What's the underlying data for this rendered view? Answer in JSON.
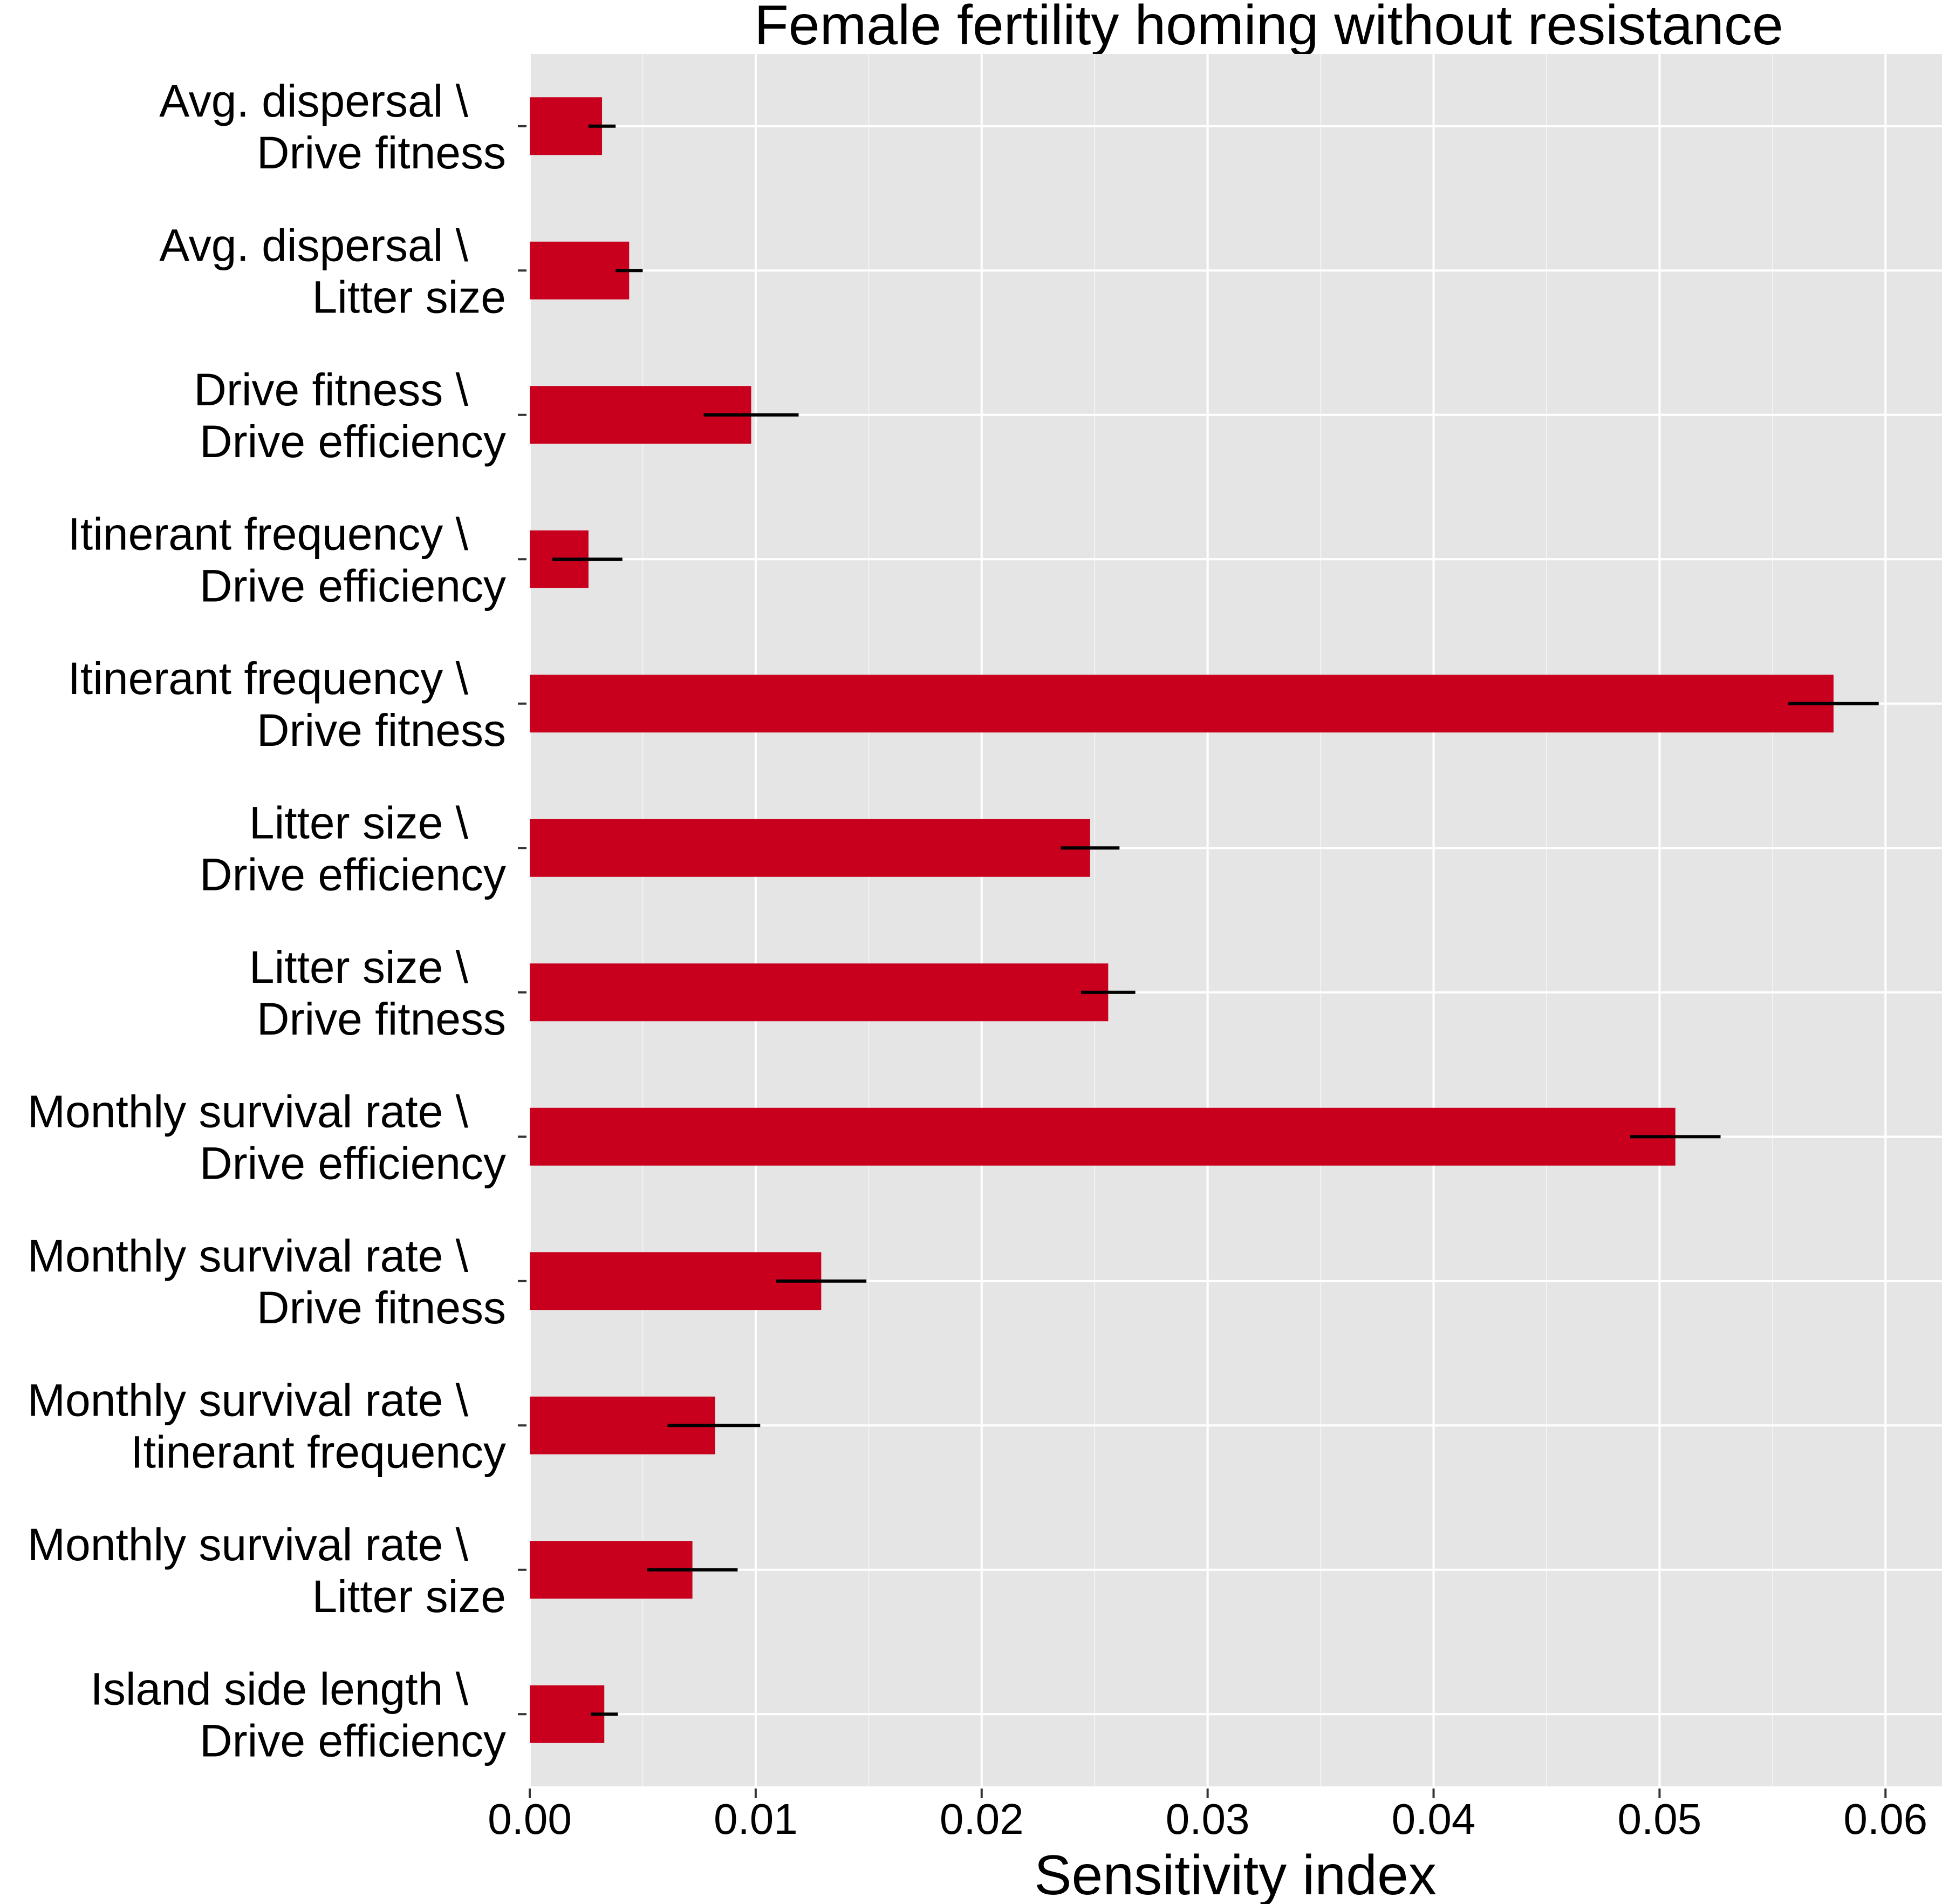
{
  "chart_data": {
    "type": "bar",
    "orientation": "horizontal",
    "title": "Female fertility homing without resistance",
    "xlabel": "Sensitivity index",
    "ylabel": "",
    "xlim": [
      0,
      0.0625
    ],
    "xticks": [
      0.0,
      0.01,
      0.02,
      0.03,
      0.04,
      0.05,
      0.06
    ],
    "xtick_labels": [
      "0.00",
      "0.01",
      "0.02",
      "0.03",
      "0.04",
      "0.05",
      "0.06"
    ],
    "grid": true,
    "legend": "none",
    "bar_color": "#c8001e",
    "panel_color": "#e5e5e5",
    "categories": [
      [
        "Avg. dispersal \\",
        "Drive fitness"
      ],
      [
        "Avg. dispersal \\",
        "Litter size"
      ],
      [
        "Drive fitness \\",
        "Drive efficiency"
      ],
      [
        "Itinerant frequency \\",
        "Drive efficiency"
      ],
      [
        "Itinerant frequency \\",
        "Drive fitness"
      ],
      [
        "Litter size \\",
        "Drive efficiency"
      ],
      [
        "Litter size \\",
        "Drive fitness"
      ],
      [
        "Monthly survival rate \\",
        "Drive efficiency"
      ],
      [
        "Monthly survival rate \\",
        "Drive fitness"
      ],
      [
        "Monthly survival rate \\",
        "Itinerant frequency"
      ],
      [
        "Monthly survival rate \\",
        "Litter size"
      ],
      [
        "Island side length \\",
        "Drive efficiency"
      ]
    ],
    "values": [
      0.0032,
      0.0044,
      0.0098,
      0.0026,
      0.0577,
      0.0248,
      0.0256,
      0.0507,
      0.0129,
      0.0082,
      0.0072,
      0.0033
    ],
    "error_low": [
      0.0026,
      0.0038,
      0.0077,
      0.001,
      0.0557,
      0.0235,
      0.0244,
      0.0487,
      0.0109,
      0.0061,
      0.0052,
      0.0027
    ],
    "error_high": [
      0.0038,
      0.005,
      0.0119,
      0.0041,
      0.0597,
      0.0261,
      0.0268,
      0.0527,
      0.0149,
      0.0102,
      0.0092,
      0.0039
    ]
  }
}
